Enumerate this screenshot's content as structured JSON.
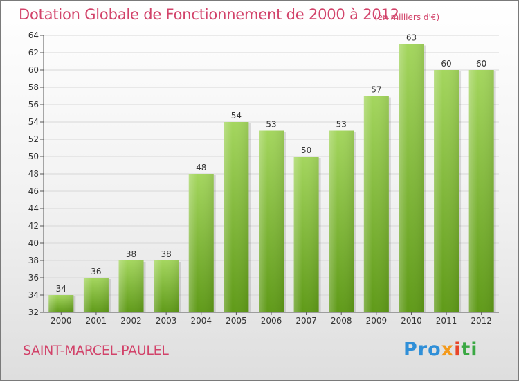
{
  "header": {
    "title": "Dotation Globale de Fonctionnement de 2000 à 2012",
    "unit_note": "(en milliers d'€)"
  },
  "footer": {
    "commune": "SAINT-MARCEL-PAULEL",
    "logo_parts": [
      "Pro",
      "x",
      "i",
      "ti"
    ]
  },
  "colors": {
    "accent": "#d2436a",
    "bar_top": "#a4d65e",
    "bar_bottom": "#5f9a18",
    "grid": "#d7d7d7"
  },
  "chart_data": {
    "type": "bar",
    "title": "Dotation Globale de Fonctionnement de 2000 à 2012",
    "subtitle": "(en milliers d'€)",
    "xlabel": "",
    "ylabel": "",
    "categories": [
      "2000",
      "2001",
      "2002",
      "2003",
      "2004",
      "2005",
      "2006",
      "2007",
      "2008",
      "2009",
      "2010",
      "2011",
      "2012"
    ],
    "values": [
      34,
      36,
      38,
      38,
      48,
      54,
      53,
      50,
      53,
      57,
      63,
      60,
      60
    ],
    "ylim": [
      32,
      64
    ],
    "yticks": [
      32,
      34,
      36,
      38,
      40,
      42,
      44,
      46,
      48,
      50,
      52,
      54,
      56,
      58,
      60,
      62,
      64
    ],
    "grid": true,
    "legend": "none"
  }
}
